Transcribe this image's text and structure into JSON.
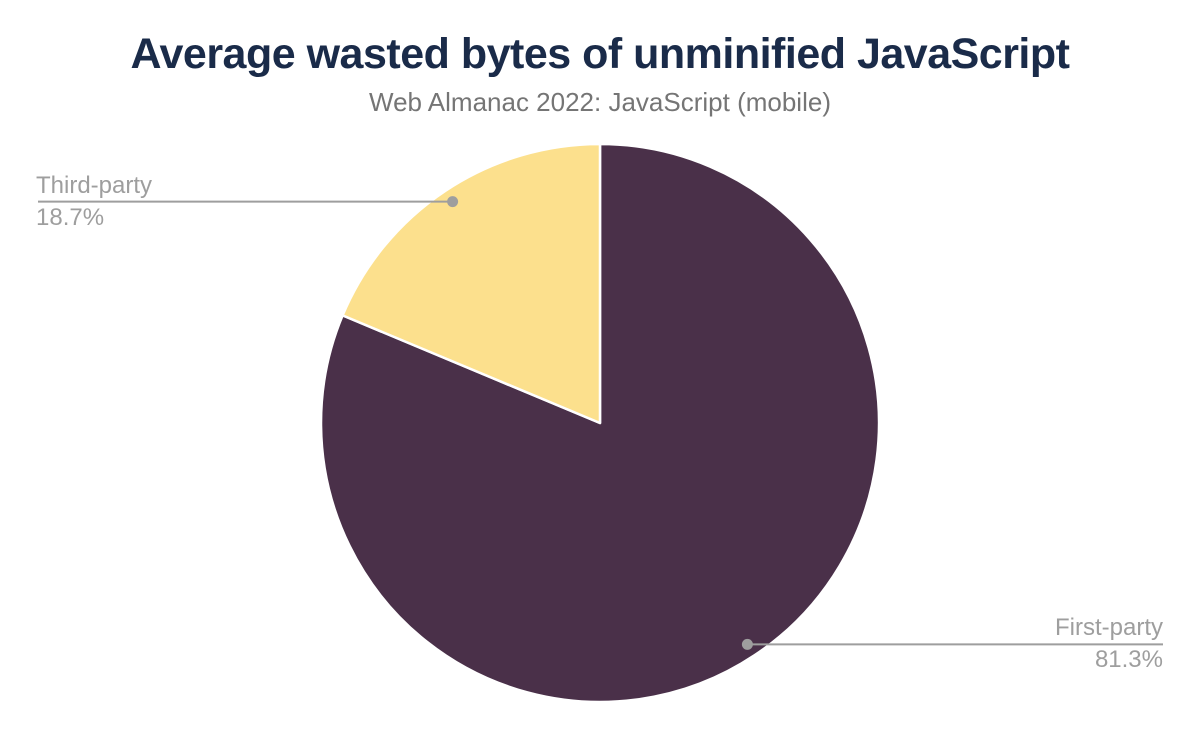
{
  "chart_data": {
    "type": "pie",
    "title": "Average wasted bytes of unminified JavaScript",
    "subtitle": "Web Almanac 2022: JavaScript (mobile)",
    "unit": "percent",
    "start_angle_deg": 0,
    "direction": "clockwise",
    "slice_border_color": "#FFFFFF",
    "slices": [
      {
        "label": "First-party",
        "value": 81.3,
        "display": "81.3%",
        "color": "#4A3049",
        "callout_side": "right"
      },
      {
        "label": "Third-party",
        "value": 18.7,
        "display": "18.7%",
        "color": "#FCE08D",
        "callout_side": "left"
      }
    ]
  },
  "colors": {
    "background": "#FFFFFF",
    "title": "#1A2B49",
    "subtitle": "#757575",
    "callout_text": "#9E9E9E",
    "leader_line": "#9E9E9E"
  }
}
